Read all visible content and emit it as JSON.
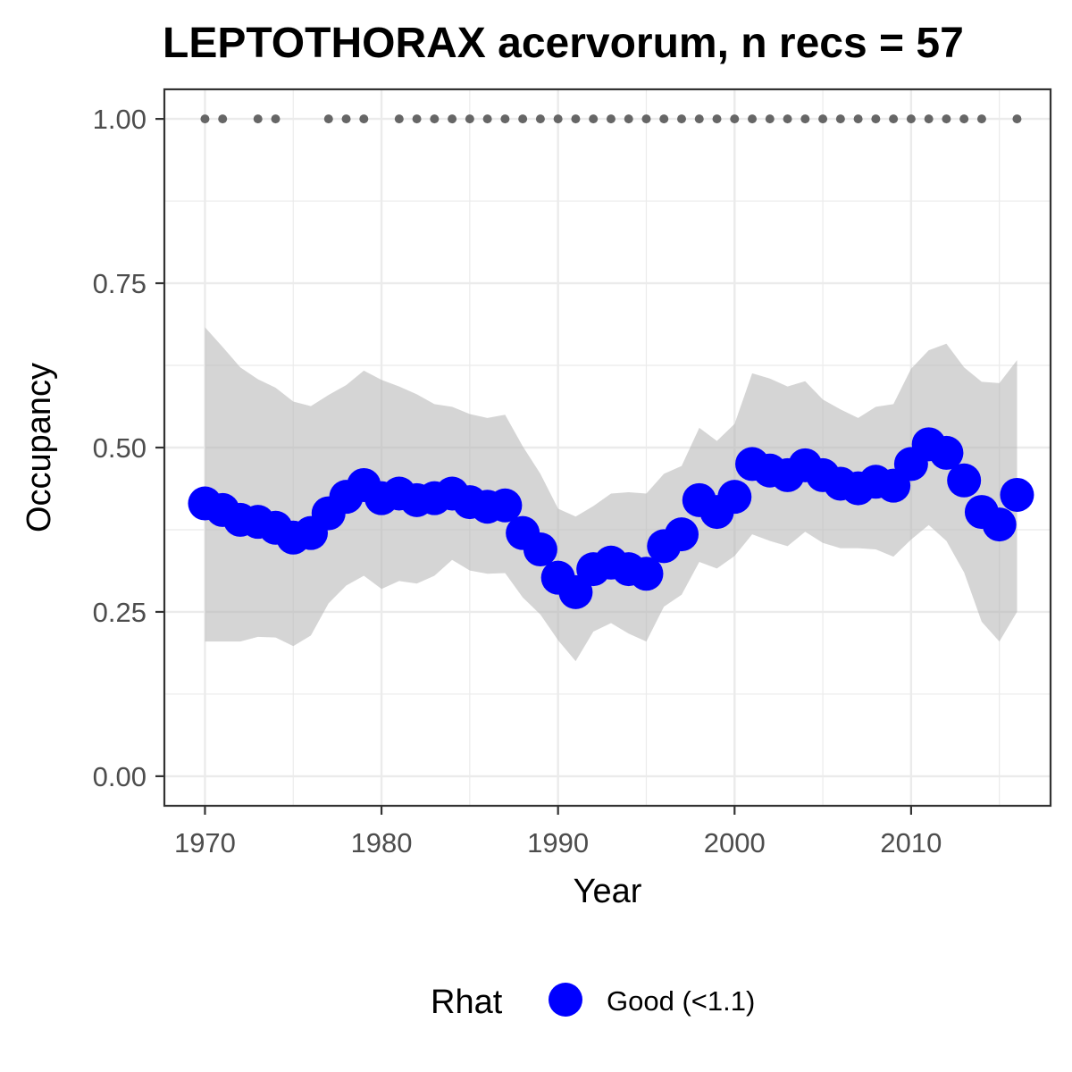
{
  "chart_data": {
    "type": "line",
    "title": "LEPTOTHORAX acervorum, n recs = 57",
    "xlabel": "Year",
    "ylabel": "Occupancy",
    "xlim": [
      1967.7,
      2017.9
    ],
    "ylim": [
      -0.045,
      1.045
    ],
    "x_ticks": [
      1970,
      1980,
      1990,
      2000,
      2010
    ],
    "x_tick_labels": [
      "1970",
      "1980",
      "1990",
      "2000",
      "2010"
    ],
    "y_ticks": [
      0,
      0.25,
      0.5,
      0.75,
      1.0
    ],
    "y_tick_labels": [
      "0.00",
      "0.25",
      "0.50",
      "0.75",
      "1.00"
    ],
    "grid": true,
    "legend": {
      "position": "bottom",
      "title": "Rhat",
      "entries": [
        {
          "label": "Good (<1.1)",
          "color": "#0000ff"
        }
      ]
    },
    "colors": {
      "points": "#0000ff",
      "ribbon": "#b3b3b3",
      "record_years": "#666666",
      "grid": "#ebebeb",
      "panel_border": "#333333"
    },
    "series": [
      {
        "name": "Good (<1.1)",
        "x": [
          1970,
          1971,
          1972,
          1973,
          1974,
          1975,
          1976,
          1977,
          1978,
          1979,
          1980,
          1981,
          1982,
          1983,
          1984,
          1985,
          1986,
          1987,
          1988,
          1989,
          1990,
          1991,
          1992,
          1993,
          1994,
          1995,
          1996,
          1997,
          1998,
          1999,
          2000,
          2001,
          2002,
          2003,
          2004,
          2005,
          2006,
          2007,
          2008,
          2009,
          2010,
          2011,
          2012,
          2013,
          2014,
          2015,
          2016
        ],
        "y": [
          0.415,
          0.405,
          0.39,
          0.387,
          0.378,
          0.363,
          0.37,
          0.4,
          0.425,
          0.443,
          0.423,
          0.43,
          0.42,
          0.423,
          0.43,
          0.417,
          0.41,
          0.412,
          0.37,
          0.345,
          0.302,
          0.28,
          0.315,
          0.325,
          0.315,
          0.308,
          0.35,
          0.368,
          0.42,
          0.402,
          0.425,
          0.475,
          0.465,
          0.458,
          0.473,
          0.458,
          0.445,
          0.438,
          0.448,
          0.442,
          0.475,
          0.505,
          0.492,
          0.45,
          0.402,
          0.383,
          0.428
        ],
        "lower": [
          0.205,
          0.205,
          0.205,
          0.212,
          0.211,
          0.198,
          0.214,
          0.263,
          0.29,
          0.305,
          0.285,
          0.297,
          0.293,
          0.305,
          0.329,
          0.313,
          0.308,
          0.309,
          0.272,
          0.246,
          0.207,
          0.175,
          0.22,
          0.233,
          0.217,
          0.205,
          0.258,
          0.276,
          0.326,
          0.316,
          0.335,
          0.368,
          0.358,
          0.35,
          0.372,
          0.355,
          0.347,
          0.347,
          0.345,
          0.334,
          0.36,
          0.382,
          0.358,
          0.31,
          0.235,
          0.205,
          0.25
        ],
        "upper": [
          0.683,
          0.653,
          0.622,
          0.604,
          0.591,
          0.57,
          0.563,
          0.58,
          0.595,
          0.617,
          0.603,
          0.593,
          0.581,
          0.566,
          0.562,
          0.551,
          0.545,
          0.55,
          0.502,
          0.46,
          0.407,
          0.395,
          0.411,
          0.43,
          0.432,
          0.43,
          0.46,
          0.472,
          0.53,
          0.51,
          0.536,
          0.613,
          0.605,
          0.593,
          0.601,
          0.573,
          0.558,
          0.545,
          0.562,
          0.566,
          0.62,
          0.648,
          0.658,
          0.622,
          0.6,
          0.598,
          0.633
        ]
      }
    ],
    "record_years": {
      "y": 1.0,
      "x": [
        1970,
        1971,
        1973,
        1974,
        1977,
        1978,
        1979,
        1981,
        1982,
        1983,
        1984,
        1985,
        1986,
        1987,
        1988,
        1989,
        1990,
        1991,
        1992,
        1993,
        1994,
        1995,
        1996,
        1997,
        1998,
        1999,
        2000,
        2001,
        2002,
        2003,
        2004,
        2005,
        2006,
        2007,
        2008,
        2009,
        2010,
        2011,
        2012,
        2013,
        2014,
        2016
      ]
    }
  }
}
